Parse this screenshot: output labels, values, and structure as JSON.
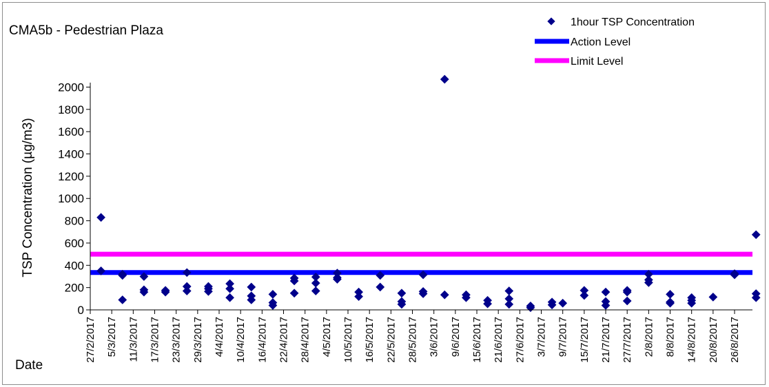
{
  "chart_data": {
    "type": "scatter",
    "title": "CMA5b - Pedestrian Plaza",
    "xlabel": "Date",
    "ylabel": "TSP Concentration (µg/m3)",
    "ylim": [
      0,
      2100
    ],
    "y_ticks": [
      0,
      200,
      400,
      600,
      800,
      1000,
      1200,
      1400,
      1600,
      1800,
      2000
    ],
    "x_start": "27/2/2017",
    "x_end": "31/8/2017",
    "x_tick_step_days": 6,
    "x_tick_labels": [
      "27/2/2017",
      "5/3/2017",
      "11/3/2017",
      "17/3/2017",
      "23/3/2017",
      "29/3/2017",
      "4/4/2017",
      "10/4/2017",
      "16/4/2017",
      "22/4/2017",
      "28/4/2017",
      "4/5/2017",
      "10/5/2017",
      "16/5/2017",
      "22/5/2017",
      "28/5/2017",
      "3/6/2017",
      "9/6/2017",
      "15/6/2017",
      "21/6/2017",
      "27/6/2017",
      "3/7/2017",
      "9/7/2017",
      "15/7/2017",
      "21/7/2017",
      "27/7/2017",
      "2/8/2017",
      "8/8/2017",
      "14/8/2017",
      "20/8/2017",
      "26/8/2017"
    ],
    "grid": false,
    "legend_position": "top-right",
    "colors": {
      "marker": "#00008B",
      "action_level": "#0000FF",
      "limit_level": "#FF00FF"
    },
    "series": [
      {
        "name": "1hour TSP Concentration",
        "kind": "scatter",
        "points": [
          {
            "x": "2/3/2017",
            "y": 830
          },
          {
            "x": "2/3/2017",
            "y": 350
          },
          {
            "x": "8/3/2017",
            "y": 320
          },
          {
            "x": "8/3/2017",
            "y": 310
          },
          {
            "x": "8/3/2017",
            "y": 90
          },
          {
            "x": "14/3/2017",
            "y": 300
          },
          {
            "x": "14/3/2017",
            "y": 180
          },
          {
            "x": "14/3/2017",
            "y": 160
          },
          {
            "x": "20/3/2017",
            "y": 175
          },
          {
            "x": "20/3/2017",
            "y": 160
          },
          {
            "x": "26/3/2017",
            "y": 335
          },
          {
            "x": "26/3/2017",
            "y": 210
          },
          {
            "x": "26/3/2017",
            "y": 170
          },
          {
            "x": "1/4/2017",
            "y": 210
          },
          {
            "x": "1/4/2017",
            "y": 190
          },
          {
            "x": "1/4/2017",
            "y": 165
          },
          {
            "x": "7/4/2017",
            "y": 235
          },
          {
            "x": "7/4/2017",
            "y": 190
          },
          {
            "x": "7/4/2017",
            "y": 110
          },
          {
            "x": "13/4/2017",
            "y": 205
          },
          {
            "x": "13/4/2017",
            "y": 125
          },
          {
            "x": "13/4/2017",
            "y": 90
          },
          {
            "x": "19/4/2017",
            "y": 140
          },
          {
            "x": "19/4/2017",
            "y": 65
          },
          {
            "x": "19/4/2017",
            "y": 40
          },
          {
            "x": "25/4/2017",
            "y": 285
          },
          {
            "x": "25/4/2017",
            "y": 260
          },
          {
            "x": "25/4/2017",
            "y": 150
          },
          {
            "x": "1/5/2017",
            "y": 295
          },
          {
            "x": "1/5/2017",
            "y": 240
          },
          {
            "x": "1/5/2017",
            "y": 170
          },
          {
            "x": "7/5/2017",
            "y": 330
          },
          {
            "x": "7/5/2017",
            "y": 290
          },
          {
            "x": "7/5/2017",
            "y": 275
          },
          {
            "x": "13/5/2017",
            "y": 160
          },
          {
            "x": "13/5/2017",
            "y": 120
          },
          {
            "x": "19/5/2017",
            "y": 310
          },
          {
            "x": "19/5/2017",
            "y": 205
          },
          {
            "x": "25/5/2017",
            "y": 150
          },
          {
            "x": "25/5/2017",
            "y": 75
          },
          {
            "x": "25/5/2017",
            "y": 50
          },
          {
            "x": "31/5/2017",
            "y": 315
          },
          {
            "x": "31/5/2017",
            "y": 165
          },
          {
            "x": "31/5/2017",
            "y": 145
          },
          {
            "x": "6/6/2017",
            "y": 2070
          },
          {
            "x": "6/6/2017",
            "y": 135
          },
          {
            "x": "12/6/2017",
            "y": 135
          },
          {
            "x": "12/6/2017",
            "y": 110
          },
          {
            "x": "18/6/2017",
            "y": 85
          },
          {
            "x": "18/6/2017",
            "y": 55
          },
          {
            "x": "24/6/2017",
            "y": 170
          },
          {
            "x": "24/6/2017",
            "y": 100
          },
          {
            "x": "24/6/2017",
            "y": 50
          },
          {
            "x": "30/6/2017",
            "y": 35
          },
          {
            "x": "30/6/2017",
            "y": 20
          },
          {
            "x": "6/7/2017",
            "y": 70
          },
          {
            "x": "6/7/2017",
            "y": 45
          },
          {
            "x": "9/7/2017",
            "y": 60
          },
          {
            "x": "15/7/2017",
            "y": 175
          },
          {
            "x": "15/7/2017",
            "y": 130
          },
          {
            "x": "21/7/2017",
            "y": 160
          },
          {
            "x": "21/7/2017",
            "y": 75
          },
          {
            "x": "21/7/2017",
            "y": 40
          },
          {
            "x": "27/7/2017",
            "y": 175
          },
          {
            "x": "27/7/2017",
            "y": 160
          },
          {
            "x": "27/7/2017",
            "y": 80
          },
          {
            "x": "2/8/2017",
            "y": 320
          },
          {
            "x": "2/8/2017",
            "y": 270
          },
          {
            "x": "2/8/2017",
            "y": 245
          },
          {
            "x": "8/8/2017",
            "y": 140
          },
          {
            "x": "8/8/2017",
            "y": 70
          },
          {
            "x": "8/8/2017",
            "y": 60
          },
          {
            "x": "14/8/2017",
            "y": 110
          },
          {
            "x": "14/8/2017",
            "y": 85
          },
          {
            "x": "14/8/2017",
            "y": 60
          },
          {
            "x": "20/8/2017",
            "y": 115
          },
          {
            "x": "26/8/2017",
            "y": 325
          },
          {
            "x": "26/8/2017",
            "y": 315
          },
          {
            "x": "1/9/2017",
            "y": 675
          },
          {
            "x": "1/9/2017",
            "y": 145
          },
          {
            "x": "1/9/2017",
            "y": 110
          }
        ]
      },
      {
        "name": "Action Level",
        "kind": "hline",
        "y": 335
      },
      {
        "name": "Limit Level",
        "kind": "hline",
        "y": 500
      }
    ]
  }
}
